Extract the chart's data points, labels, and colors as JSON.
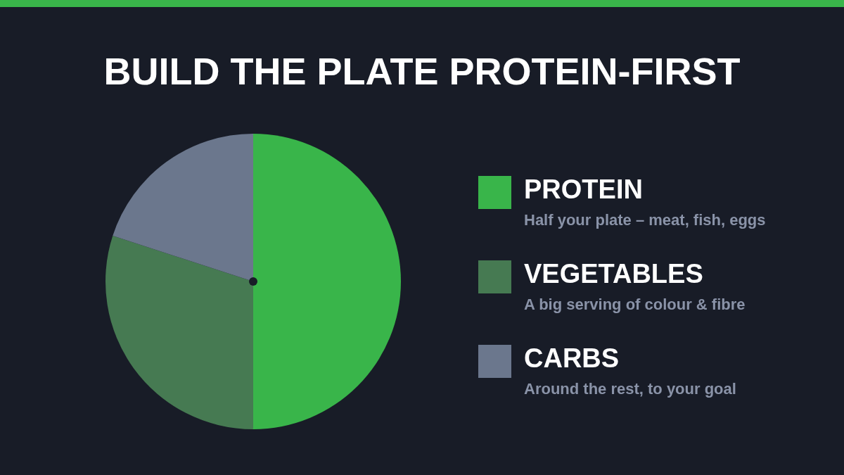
{
  "chart_data": {
    "type": "pie",
    "title": "BUILD THE PLATE PROTEIN-FIRST",
    "categories": [
      "PROTEIN",
      "VEGETABLES",
      "CARBS"
    ],
    "values": [
      50,
      30,
      20
    ],
    "colors": [
      "#39b54a",
      "#467a52",
      "#6b778d"
    ],
    "legend": "right",
    "annotations": [
      "Half your plate – meat, fish, eggs",
      "A big serving of colour & fibre",
      "Around the rest, to your goal"
    ]
  }
}
